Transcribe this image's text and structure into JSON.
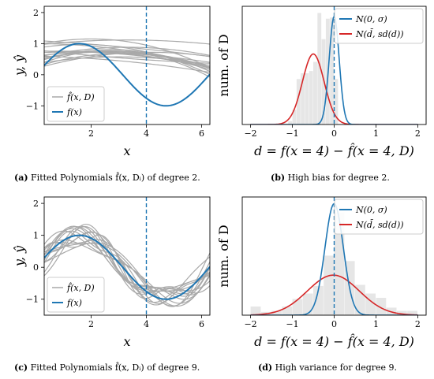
{
  "colors": {
    "gray": "#a9a9a9",
    "blue": "#1f77b4",
    "red": "#d62728",
    "hist": "#e6e6e6"
  },
  "captions": {
    "a": {
      "tag": "(a)",
      "text": " Fitted Polynomials f̂(x, Dᵢ) of degree 2."
    },
    "b": {
      "tag": "(b)",
      "text": " High bias for degree 2."
    },
    "c": {
      "tag": "(c)",
      "text": " Fitted Polynomials f̂(x, Dᵢ) of degree 9."
    },
    "d": {
      "tag": "(d)",
      "text": " High variance for degree 9."
    }
  },
  "chart_data": [
    {
      "id": "a",
      "type": "line",
      "xlabel": "x",
      "ylabel": "y, ŷ",
      "xlim": [
        0.3,
        6.3
      ],
      "ylim": [
        -1.6,
        2.2
      ],
      "xticks": [
        2,
        4,
        6
      ],
      "yticks": [
        -1,
        0,
        1,
        2
      ],
      "vline_x": 4,
      "legend": {
        "position": "lower-left",
        "entries": [
          "f̂(x, D)",
          "f(x)"
        ]
      },
      "fit_degree": 2,
      "true_function": "sin(x)",
      "fitted_curves": [
        [
          0.55,
          0.2,
          -0.03
        ],
        [
          0.95,
          0.1,
          -0.015
        ],
        [
          0.25,
          0.28,
          -0.045
        ],
        [
          1.1,
          -0.05,
          -0.005
        ],
        [
          0.4,
          0.3,
          -0.055
        ],
        [
          0.7,
          0.05,
          -0.02
        ],
        [
          0.85,
          0.15,
          -0.045
        ],
        [
          0.2,
          0.25,
          -0.03
        ],
        [
          0.6,
          -0.02,
          -0.01
        ],
        [
          0.95,
          0.2,
          -0.05
        ],
        [
          0.35,
          0.15,
          -0.025
        ],
        [
          0.8,
          -0.1,
          0.005
        ],
        [
          0.45,
          0.22,
          -0.04
        ],
        [
          0.6,
          0.12,
          -0.03
        ],
        [
          0.3,
          0.35,
          -0.065
        ],
        [
          0.75,
          0.02,
          -0.012
        ],
        [
          0.5,
          0.18,
          -0.035
        ],
        [
          1.0,
          0.0,
          -0.02
        ]
      ]
    },
    {
      "id": "b",
      "type": "bar",
      "xlabel": "d = f(x = 4) − f̂(x = 4, D)",
      "ylabel": "num. of D",
      "xlim": [
        -2.2,
        2.2
      ],
      "xticks": [
        -2,
        -1,
        0,
        1,
        2
      ],
      "vline_x": 0,
      "legend": {
        "position": "top-right",
        "entries": [
          "N(0, σ)",
          "N(d̄, sd(d))"
        ]
      },
      "hist_bins": [
        -1.1,
        -1.0,
        -0.9,
        -0.8,
        -0.7,
        -0.6,
        -0.5,
        -0.4,
        -0.3,
        -0.2,
        -0.1,
        0.0
      ],
      "hist_counts": [
        3,
        13,
        40,
        45,
        45,
        47,
        55,
        98,
        75,
        93,
        94,
        40
      ],
      "bin_width": 0.1,
      "true_normal": {
        "mean": 0,
        "sd": 0.12,
        "peak": 95
      },
      "fit_normal": {
        "mean": -0.5,
        "sd": 0.26,
        "peak": 62
      }
    },
    {
      "id": "c",
      "type": "line",
      "xlabel": "x",
      "ylabel": "y, ŷ",
      "xlim": [
        0.3,
        6.3
      ],
      "ylim": [
        -1.5,
        2.2
      ],
      "xticks": [
        2,
        4,
        6
      ],
      "yticks": [
        -1,
        0,
        1,
        2
      ],
      "vline_x": 4,
      "legend": {
        "position": "lower-left",
        "entries": [
          "f̂(x, D)",
          "f(x)"
        ]
      },
      "fit_degree": 9,
      "true_function": "sin(x)",
      "perturbations": [
        [
          0.3,
          2.1,
          0.2,
          0.2
        ],
        [
          0.35,
          1.7,
          1.3,
          -0.1
        ],
        [
          0.25,
          2.6,
          2.0,
          0.1
        ],
        [
          0.4,
          1.4,
          3.1,
          0.0
        ],
        [
          0.3,
          2.3,
          4.0,
          -0.15
        ],
        [
          0.25,
          1.9,
          5.2,
          0.2
        ],
        [
          0.35,
          2.8,
          0.7,
          -0.05
        ],
        [
          0.3,
          1.6,
          2.5,
          0.15
        ],
        [
          0.4,
          2.2,
          3.6,
          -0.2
        ],
        [
          0.25,
          2.5,
          1.0,
          0.05
        ],
        [
          0.35,
          1.8,
          5.8,
          -0.1
        ],
        [
          0.3,
          2.0,
          2.9,
          0.25
        ],
        [
          0.2,
          3.0,
          4.5,
          0.0
        ],
        [
          0.35,
          1.5,
          0.3,
          -0.15
        ],
        [
          0.3,
          2.4,
          3.3,
          0.1
        ]
      ]
    },
    {
      "id": "d",
      "type": "bar",
      "xlabel": "d = f(x = 4) − f̂(x = 4, D)",
      "ylabel": "num. of D",
      "xlim": [
        -2.2,
        2.2
      ],
      "xticks": [
        -2,
        -1,
        0,
        1,
        2
      ],
      "vline_x": 0,
      "legend": {
        "position": "top-right",
        "entries": [
          "N(0, σ)",
          "N(d̄, sd(d))"
        ]
      },
      "hist_bins": [
        -2.0,
        -1.75,
        -1.5,
        -1.25,
        -1.0,
        -0.75,
        -0.5,
        -0.25,
        0.0,
        0.25,
        0.5,
        0.75,
        1.0,
        1.25,
        1.5,
        1.75
      ],
      "hist_counts": [
        8,
        3,
        4,
        8,
        15,
        20,
        27,
        55,
        95,
        50,
        28,
        20,
        16,
        7,
        4,
        4
      ],
      "bin_width": 0.25,
      "true_normal": {
        "mean": 0,
        "sd": 0.22,
        "peak": 103
      },
      "fit_normal": {
        "mean": -0.02,
        "sd": 0.62,
        "peak": 37
      }
    }
  ]
}
